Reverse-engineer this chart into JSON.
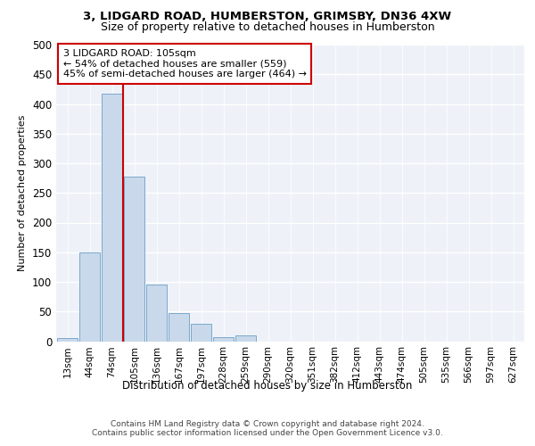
{
  "title1": "3, LIDGARD ROAD, HUMBERSTON, GRIMSBY, DN36 4XW",
  "title2": "Size of property relative to detached houses in Humberston",
  "xlabel": "Distribution of detached houses by size in Humberston",
  "ylabel": "Number of detached properties",
  "bar_labels": [
    "13sqm",
    "44sqm",
    "74sqm",
    "105sqm",
    "136sqm",
    "167sqm",
    "197sqm",
    "228sqm",
    "259sqm",
    "290sqm",
    "320sqm",
    "351sqm",
    "382sqm",
    "412sqm",
    "443sqm",
    "474sqm",
    "505sqm",
    "535sqm",
    "566sqm",
    "597sqm",
    "627sqm"
  ],
  "bar_values": [
    5,
    150,
    418,
    277,
    95,
    48,
    30,
    7,
    10,
    0,
    0,
    0,
    0,
    0,
    0,
    0,
    0,
    0,
    0,
    0,
    0
  ],
  "bar_color": "#c9d9eb",
  "bar_edge_color": "#7aa8cc",
  "highlight_bar_index": 3,
  "highlight_color": "#cc0000",
  "annotation_text": "3 LIDGARD ROAD: 105sqm\n← 54% of detached houses are smaller (559)\n45% of semi-detached houses are larger (464) →",
  "annotation_box_color": "#ffffff",
  "annotation_box_edge_color": "#cc0000",
  "ylim": [
    0,
    500
  ],
  "yticks": [
    0,
    50,
    100,
    150,
    200,
    250,
    300,
    350,
    400,
    450,
    500
  ],
  "bg_color": "#eef2f8",
  "footer": "Contains HM Land Registry data © Crown copyright and database right 2024.\nContains public sector information licensed under the Open Government Licence v3.0."
}
